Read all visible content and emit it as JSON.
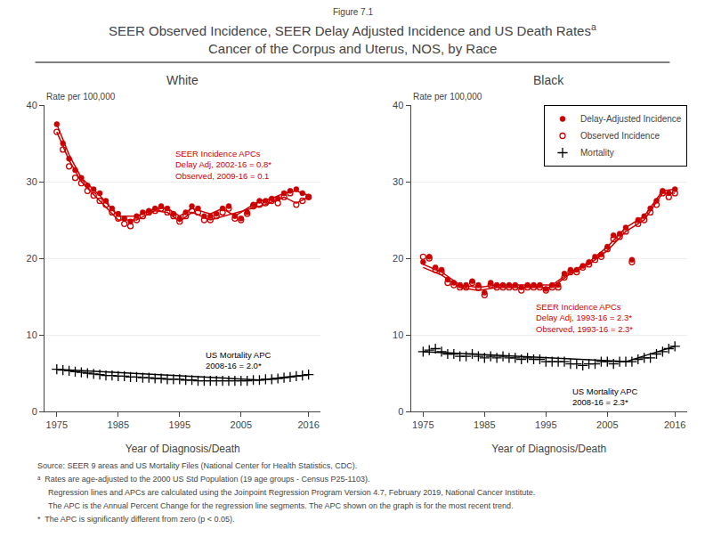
{
  "figure_label": "Figure 7.1",
  "title": "SEER Observed Incidence, SEER Delay Adjusted Incidence and US Death Rates",
  "title_superscript": "a",
  "subtitle": "Cancer of the Corpus and Uterus, NOS, by Race",
  "footnotes": [
    "Source: SEER 9 areas and US Mortality Files (National Center for Health Statistics, CDC).",
    "ᵃ  Rates are age-adjusted to the 2000 US Std Population (19 age groups - Census P25-1103).",
    "Regression lines and APCs are calculated using the Joinpoint Regression Program Version 4.7, February 2019, National Cancer Institute.",
    "The APC is the Annual Percent Change for the regression line segments. The APC shown on the graph is for the most recent trend.",
    "*  The APC is significantly different from zero (p < 0.05)."
  ],
  "chart_data": [
    {
      "type": "scatter",
      "title": "White",
      "xlabel": "Year of Diagnosis/Death",
      "ylabel": "Rate per 100,000",
      "xlim": [
        1973,
        2018
      ],
      "xticks": [
        1975,
        1985,
        1995,
        2005,
        2016
      ],
      "ylim": [
        0,
        40
      ],
      "yticks": [
        0,
        10,
        20,
        30,
        40
      ],
      "grid": "y",
      "series": [
        {
          "type": "line",
          "color": "#CC0000",
          "x": [
            1975,
            1977,
            1979,
            1982,
            1985,
            1988,
            1991,
            1993,
            1995,
            1997,
            2000,
            2002,
            2004,
            2006,
            2008,
            2010,
            2012,
            2014,
            2016
          ],
          "values": [
            37.5,
            33.5,
            30.5,
            28.2,
            25.5,
            25.5,
            26.5,
            26.5,
            25.5,
            26.5,
            25.8,
            26.5,
            25.5,
            26.5,
            27.5,
            27.8,
            28.5,
            28.8,
            28.2
          ]
        },
        {
          "type": "line",
          "color": "#CC0000",
          "x": [
            1975,
            1977,
            1979,
            1982,
            1985,
            1988,
            1991,
            1993,
            1995,
            1997,
            2000,
            2009,
            2012,
            2014,
            2016
          ],
          "values": [
            36.5,
            32.8,
            30.0,
            27.5,
            25.0,
            25.0,
            26.2,
            26.0,
            24.8,
            26.0,
            25.0,
            27.0,
            28.0,
            27.2,
            28.0
          ]
        },
        {
          "type": "line",
          "color": "#000000",
          "x": [
            1975,
            2008,
            2016
          ],
          "values": [
            5.5,
            4.1,
            4.8
          ]
        },
        {
          "type": "scatter",
          "marker": "circle",
          "color": "#CC0000",
          "x": [
            1975,
            1976,
            1977,
            1978,
            1979,
            1980,
            1981,
            1982,
            1983,
            1984,
            1985,
            1986,
            1987,
            1988,
            1989,
            1990,
            1991,
            1992,
            1993,
            1994,
            1995,
            1996,
            1997,
            1998,
            1999,
            2000,
            2001,
            2002,
            2003,
            2004,
            2005,
            2006,
            2007,
            2008,
            2009,
            2010,
            2011,
            2012,
            2013,
            2014,
            2015,
            2016
          ],
          "values": [
            37.5,
            35.0,
            33.0,
            31.5,
            30.5,
            29.5,
            29.0,
            28.5,
            27.5,
            26.5,
            25.8,
            25.2,
            24.8,
            25.5,
            26.0,
            26.2,
            26.5,
            26.8,
            26.5,
            25.8,
            25.2,
            26.0,
            26.8,
            26.5,
            25.5,
            25.5,
            25.8,
            26.5,
            26.8,
            25.5,
            25.2,
            26.0,
            27.0,
            27.5,
            27.5,
            27.8,
            27.8,
            28.5,
            28.8,
            29.0,
            28.5,
            28.0
          ]
        },
        {
          "type": "scatter",
          "marker": "circle-open",
          "color": "#CC0000",
          "x": [
            1975,
            1976,
            1977,
            1978,
            1979,
            1980,
            1981,
            1982,
            1983,
            1984,
            1985,
            1986,
            1987,
            1988,
            1989,
            1990,
            1991,
            1992,
            1993,
            1994,
            1995,
            1996,
            1997,
            1998,
            1999,
            2000,
            2001,
            2002,
            2003,
            2004,
            2005,
            2006,
            2007,
            2008,
            2009,
            2010,
            2011,
            2012,
            2013,
            2014,
            2015,
            2016
          ],
          "values": [
            36.5,
            34.2,
            32.0,
            30.5,
            29.8,
            28.8,
            28.2,
            27.5,
            27.0,
            26.0,
            25.2,
            24.5,
            24.2,
            25.0,
            25.5,
            26.0,
            26.2,
            26.5,
            26.0,
            25.5,
            24.8,
            25.5,
            26.2,
            26.0,
            25.0,
            25.0,
            25.5,
            26.0,
            26.5,
            25.2,
            25.0,
            25.8,
            26.8,
            27.0,
            27.2,
            27.5,
            27.2,
            28.0,
            28.5,
            27.0,
            27.5,
            28.0
          ]
        },
        {
          "type": "scatter",
          "marker": "plus",
          "color": "#000000",
          "x": [
            1975,
            1976,
            1977,
            1978,
            1979,
            1980,
            1981,
            1982,
            1983,
            1984,
            1985,
            1986,
            1987,
            1988,
            1989,
            1990,
            1991,
            1992,
            1993,
            1994,
            1995,
            1996,
            1997,
            1998,
            1999,
            2000,
            2001,
            2002,
            2003,
            2004,
            2005,
            2006,
            2007,
            2008,
            2009,
            2010,
            2011,
            2012,
            2013,
            2014,
            2015,
            2016
          ],
          "values": [
            5.5,
            5.4,
            5.3,
            5.2,
            5.1,
            5.0,
            4.9,
            4.8,
            4.7,
            4.7,
            4.6,
            4.6,
            4.5,
            4.5,
            4.4,
            4.4,
            4.3,
            4.3,
            4.2,
            4.2,
            4.2,
            4.1,
            4.1,
            4.0,
            4.0,
            4.0,
            4.0,
            4.0,
            4.0,
            4.0,
            4.0,
            4.0,
            4.1,
            4.1,
            4.2,
            4.2,
            4.3,
            4.4,
            4.5,
            4.6,
            4.7,
            4.8
          ]
        }
      ],
      "annotations": [
        {
          "text": "SEER Incidence APCs\nDelay Adj, 2002-16 = 0.8*\nObserved, 2009-16 = 0.1",
          "x": 1994,
          "y": 34.5,
          "color": "#CC0000"
        },
        {
          "text": "US Mortality APC\n2008-16 = 2.0*",
          "x": 1999,
          "y": 8.2,
          "color": "#000000"
        }
      ]
    },
    {
      "type": "scatter",
      "title": "Black",
      "xlabel": "Year of Diagnosis/Death",
      "ylabel": "Rate per 100,000",
      "xlim": [
        1973,
        2018
      ],
      "xticks": [
        1975,
        1985,
        1995,
        2005,
        2016
      ],
      "ylim": [
        0,
        40
      ],
      "yticks": [
        0,
        10,
        20,
        30,
        40
      ],
      "grid": "y",
      "legend": "upper right",
      "series": [
        {
          "type": "line",
          "color": "#CC0000",
          "x": [
            1975,
            1978,
            1981,
            1984,
            1987,
            1990,
            1993,
            1996,
            1999,
            2002,
            2005,
            2008,
            2011,
            2014,
            2016
          ],
          "values": [
            19.2,
            18.2,
            16.5,
            16.2,
            16.5,
            16.5,
            16.5,
            16.5,
            18.2,
            19.5,
            21.5,
            24.0,
            25.5,
            28.8,
            29.0
          ]
        },
        {
          "type": "line",
          "color": "#CC0000",
          "x": [
            1975,
            1978,
            1981,
            1984,
            1987,
            1990,
            1993,
            1996,
            1999,
            2002,
            2005,
            2008,
            2011,
            2014,
            2016
          ],
          "values": [
            18.8,
            17.8,
            16.2,
            15.8,
            16.2,
            16.2,
            16.2,
            16.2,
            18.0,
            19.2,
            21.0,
            23.5,
            25.0,
            28.5,
            28.5
          ]
        },
        {
          "type": "line",
          "color": "#000000",
          "x": [
            1975,
            2008,
            2016
          ],
          "values": [
            7.8,
            6.5,
            8.5
          ]
        },
        {
          "name": "Delay-Adjusted Incidence",
          "type": "scatter",
          "marker": "circle",
          "color": "#CC0000",
          "x": [
            1975,
            1976,
            1977,
            1978,
            1979,
            1980,
            1981,
            1982,
            1983,
            1984,
            1985,
            1986,
            1987,
            1988,
            1989,
            1990,
            1991,
            1992,
            1993,
            1994,
            1995,
            1996,
            1997,
            1998,
            1999,
            2000,
            2001,
            2002,
            2003,
            2004,
            2005,
            2006,
            2007,
            2008,
            2009,
            2010,
            2011,
            2012,
            2013,
            2014,
            2015,
            2016
          ],
          "values": [
            19.5,
            20.2,
            18.8,
            18.5,
            17.2,
            16.8,
            16.5,
            16.5,
            17.0,
            16.5,
            15.5,
            16.8,
            16.5,
            16.5,
            16.5,
            16.5,
            16.2,
            16.5,
            16.5,
            16.5,
            16.0,
            16.5,
            16.5,
            18.0,
            18.5,
            18.5,
            19.0,
            19.5,
            20.2,
            20.5,
            21.5,
            23.0,
            23.2,
            24.0,
            19.8,
            25.0,
            25.5,
            26.5,
            27.5,
            28.8,
            28.5,
            29.0
          ]
        },
        {
          "name": "Observed Incidence",
          "type": "scatter",
          "marker": "circle-open",
          "color": "#CC0000",
          "x": [
            1975,
            1976,
            1977,
            1978,
            1979,
            1980,
            1981,
            1982,
            1983,
            1984,
            1985,
            1986,
            1987,
            1988,
            1989,
            1990,
            1991,
            1992,
            1993,
            1994,
            1995,
            1996,
            1997,
            1998,
            1999,
            2000,
            2001,
            2002,
            2003,
            2004,
            2005,
            2006,
            2007,
            2008,
            2009,
            2010,
            2011,
            2012,
            2013,
            2014,
            2015,
            2016
          ],
          "values": [
            20.2,
            20.0,
            18.5,
            18.2,
            16.8,
            16.5,
            16.2,
            16.2,
            16.8,
            16.2,
            15.2,
            16.5,
            16.2,
            16.2,
            16.2,
            16.2,
            15.8,
            16.2,
            16.2,
            16.2,
            15.8,
            16.2,
            16.2,
            17.5,
            18.2,
            18.2,
            18.8,
            19.2,
            19.8,
            20.2,
            21.2,
            22.5,
            22.8,
            23.5,
            19.5,
            24.5,
            25.0,
            26.0,
            27.0,
            28.5,
            28.0,
            28.5
          ]
        },
        {
          "name": "Mortality",
          "type": "scatter",
          "marker": "plus",
          "color": "#000000",
          "x": [
            1975,
            1976,
            1977,
            1978,
            1979,
            1980,
            1981,
            1982,
            1983,
            1984,
            1985,
            1986,
            1987,
            1988,
            1989,
            1990,
            1991,
            1992,
            1993,
            1994,
            1995,
            1996,
            1997,
            1998,
            1999,
            2000,
            2001,
            2002,
            2003,
            2004,
            2005,
            2006,
            2007,
            2008,
            2009,
            2010,
            2011,
            2012,
            2013,
            2014,
            2015,
            2016
          ],
          "values": [
            7.8,
            8.0,
            8.2,
            7.8,
            7.5,
            7.5,
            7.2,
            7.2,
            7.5,
            7.2,
            7.0,
            7.2,
            7.0,
            7.2,
            7.0,
            7.0,
            6.8,
            7.0,
            6.8,
            6.8,
            6.5,
            6.5,
            6.5,
            6.5,
            6.2,
            6.2,
            6.0,
            6.2,
            6.2,
            6.5,
            6.5,
            6.2,
            6.5,
            6.5,
            6.5,
            6.8,
            7.0,
            7.0,
            7.5,
            7.8,
            8.2,
            8.5
          ]
        }
      ],
      "annotations": [
        {
          "text": "SEER Incidence APCs\nDelay Adj, 1993-16 = 2.3*\nObserved, 1993-16 = 2.3*",
          "x": 1993,
          "y": 14.5,
          "color": "#CC0000"
        },
        {
          "text": "US Mortality APC\n2008-16 = 2.3*",
          "x": 1999,
          "y": 3.5,
          "color": "#000000"
        }
      ]
    }
  ]
}
